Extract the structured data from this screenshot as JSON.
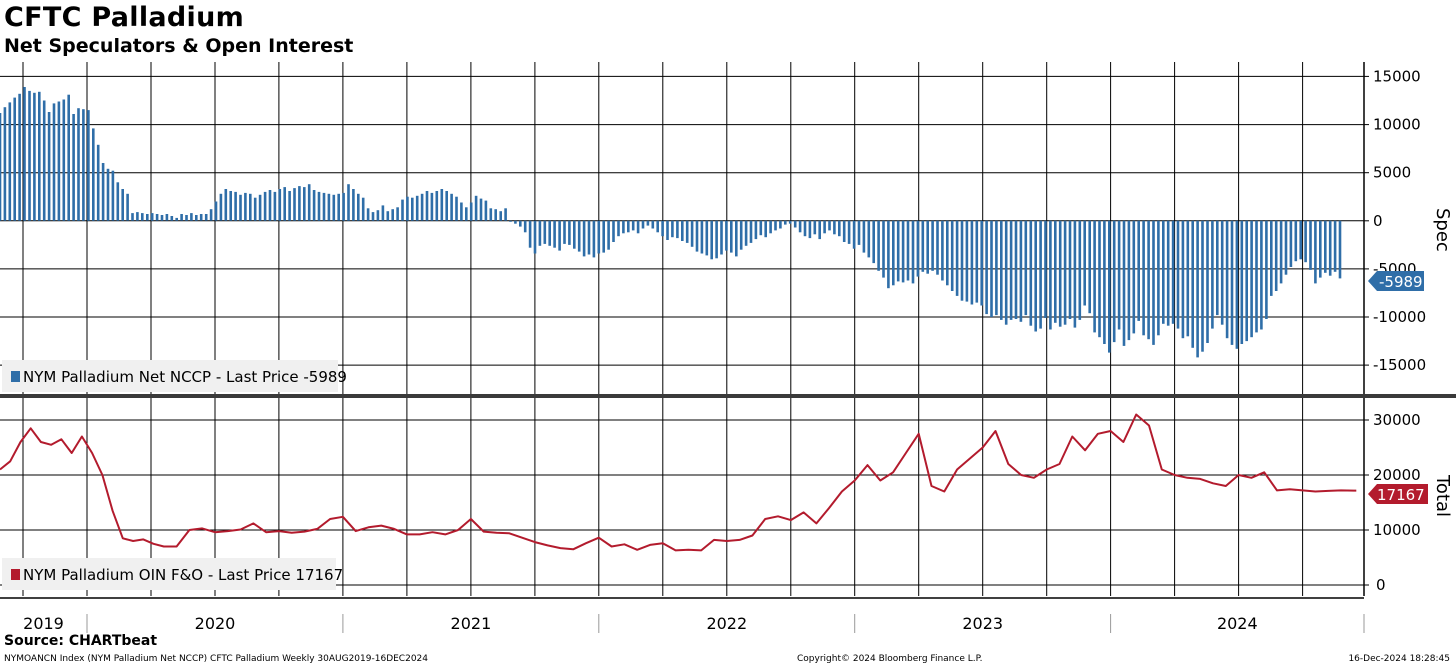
{
  "header": {
    "title": "CFTC Palladium",
    "subtitle": "Net Speculators & Open Interest"
  },
  "footer": {
    "source": "Source: CHARTbeat",
    "left": "NYMOANCN Index (NYM Palladium Net NCCP) CFTC Palladium  Weekly 30AUG2019-16DEC2024",
    "middle": "Copyright© 2024 Bloomberg Finance L.P.",
    "right": "16-Dec-2024 18:28:45"
  },
  "colors": {
    "bar": "#2f6ea8",
    "line": "#b31b2d",
    "grid": "#000000",
    "badge_top": "#2f6ea8",
    "badge_bottom": "#b31b2d"
  },
  "chart_data": [
    {
      "type": "bar",
      "panel": "top",
      "series_name": "NYM Palladium Net NCCP",
      "legend": "NYM Palladium Net NCCP - Last Price -5989",
      "axis_title": "Spec",
      "last_value": -5989,
      "last_label": "-5989",
      "ylim": [
        -18000,
        16500
      ],
      "yticks": [
        15000,
        10000,
        5000,
        0,
        -5000,
        -10000,
        -15000
      ],
      "ytick_labels": [
        "15000",
        "10000",
        "5000",
        "0",
        "-5000",
        "-10000",
        "-15000"
      ],
      "x_start": 2019.66,
      "x_step": 0.01918,
      "values": [
        11200,
        11800,
        12300,
        12800,
        13200,
        13900,
        13500,
        13300,
        13400,
        12500,
        11300,
        12200,
        12400,
        12600,
        13100,
        11100,
        11700,
        11600,
        11500,
        9600,
        7900,
        6000,
        5400,
        5200,
        4000,
        3300,
        2800,
        800,
        900,
        800,
        700,
        800,
        700,
        600,
        700,
        500,
        300,
        700,
        600,
        800,
        600,
        700,
        700,
        1200,
        2000,
        2800,
        3300,
        3100,
        3000,
        2700,
        2900,
        2800,
        2400,
        2700,
        3000,
        3200,
        3000,
        3300,
        3500,
        3100,
        3400,
        3600,
        3500,
        3800,
        3200,
        3000,
        2900,
        2800,
        2700,
        2800,
        2900,
        3800,
        3300,
        2800,
        2400,
        1300,
        900,
        1100,
        1600,
        1000,
        1200,
        1400,
        2200,
        2500,
        2400,
        2600,
        2800,
        3100,
        2900,
        3100,
        3300,
        3100,
        2800,
        2500,
        1900,
        1400,
        1900,
        2600,
        2300,
        2100,
        1300,
        1200,
        1000,
        1300,
        -100,
        -300,
        -600,
        -1200,
        -2800,
        -3400,
        -2600,
        -2400,
        -2600,
        -2800,
        -3100,
        -2400,
        -2500,
        -2900,
        -3200,
        -3700,
        -3500,
        -3800,
        -3400,
        -3300,
        -3000,
        -2200,
        -1600,
        -1300,
        -1200,
        -1000,
        -1300,
        -800,
        -500,
        -800,
        -1200,
        -1600,
        -2000,
        -1700,
        -1800,
        -2100,
        -2300,
        -2700,
        -3200,
        -3400,
        -3600,
        -4000,
        -3900,
        -3500,
        -3100,
        -3300,
        -3700,
        -3000,
        -2600,
        -2300,
        -1900,
        -1500,
        -1700,
        -1300,
        -1000,
        -800,
        -400,
        -300,
        -700,
        -1200,
        -1600,
        -1800,
        -1400,
        -1900,
        -1300,
        -1000,
        -1400,
        -1600,
        -2200,
        -2400,
        -2900,
        -2500,
        -3300,
        -3800,
        -4400,
        -5200,
        -5900,
        -7000,
        -6700,
        -6300,
        -6400,
        -6200,
        -6500,
        -5800,
        -5300,
        -5500,
        -5200,
        -5600,
        -6200,
        -6700,
        -7300,
        -7800,
        -8300,
        -8400,
        -8700,
        -8500,
        -8800,
        -9700,
        -10000,
        -9800,
        -10300,
        -10800,
        -10300,
        -10200,
        -10500,
        -9800,
        -10900,
        -11500,
        -11200,
        -10100,
        -11300,
        -10600,
        -11000,
        -10800,
        -10200,
        -11100,
        -10300,
        -8800,
        -9600,
        -11600,
        -12100,
        -12800,
        -13700,
        -12600,
        -11300,
        -13000,
        -12400,
        -11700,
        -10400,
        -11900,
        -12300,
        -12900,
        -11900,
        -10700,
        -10900,
        -10700,
        -11200,
        -12200,
        -12000,
        -13200,
        -14200,
        -13600,
        -12700,
        -11200,
        -9800,
        -10800,
        -12200,
        -12900,
        -13300,
        -12800,
        -12500,
        -12100,
        -11600,
        -11300,
        -10200,
        -7800,
        -7300,
        -6500,
        -5600,
        -4800,
        -4200,
        -4000,
        -4300,
        -5100,
        -6500,
        -5900,
        -5400,
        -5700,
        -5300,
        -5989
      ]
    },
    {
      "type": "line",
      "panel": "bottom",
      "series_name": "NYM Palladium OIN F&O",
      "legend": "NYM Palladium OIN F&O - Last Price 17167",
      "axis_title": "Total",
      "last_value": 17167,
      "last_label": "17167",
      "ylim": [
        -2000,
        34000
      ],
      "yticks": [
        30000,
        20000,
        10000,
        0
      ],
      "ytick_labels": [
        "30000",
        "20000",
        "10000",
        "0"
      ],
      "x": [
        2019.66,
        2019.7,
        2019.74,
        2019.78,
        2019.82,
        2019.86,
        2019.9,
        2019.94,
        2019.98,
        2020.02,
        2020.06,
        2020.1,
        2020.14,
        2020.18,
        2020.22,
        2020.26,
        2020.3,
        2020.35,
        2020.4,
        2020.45,
        2020.5,
        2020.55,
        2020.6,
        2020.65,
        2020.7,
        2020.75,
        2020.8,
        2020.85,
        2020.9,
        2020.95,
        2021.0,
        2021.05,
        2021.1,
        2021.15,
        2021.2,
        2021.25,
        2021.3,
        2021.35,
        2021.4,
        2021.45,
        2021.5,
        2021.55,
        2021.6,
        2021.65,
        2021.7,
        2021.75,
        2021.8,
        2021.85,
        2021.9,
        2021.95,
        2022.0,
        2022.05,
        2022.1,
        2022.15,
        2022.2,
        2022.25,
        2022.3,
        2022.35,
        2022.4,
        2022.45,
        2022.5,
        2022.55,
        2022.6,
        2022.65,
        2022.7,
        2022.75,
        2022.8,
        2022.85,
        2022.9,
        2022.95,
        2023.0,
        2023.05,
        2023.1,
        2023.15,
        2023.2,
        2023.25,
        2023.3,
        2023.35,
        2023.4,
        2023.45,
        2023.5,
        2023.55,
        2023.6,
        2023.65,
        2023.7,
        2023.75,
        2023.8,
        2023.85,
        2023.9,
        2023.95,
        2024.0,
        2024.05,
        2024.1,
        2024.15,
        2024.2,
        2024.25,
        2024.3,
        2024.35,
        2024.4,
        2024.45,
        2024.5,
        2024.55,
        2024.6,
        2024.65,
        2024.7,
        2024.75,
        2024.8,
        2024.85,
        2024.9,
        2024.95,
        2024.96
      ],
      "values": [
        21000,
        22500,
        26000,
        28500,
        26000,
        25500,
        26500,
        24000,
        27000,
        24000,
        20000,
        13500,
        8500,
        8000,
        8300,
        7500,
        7000,
        7000,
        10000,
        10300,
        9600,
        9800,
        10100,
        11200,
        9600,
        9800,
        9500,
        9700,
        10200,
        12000,
        12400,
        9800,
        10500,
        10800,
        10200,
        9200,
        9200,
        9600,
        9200,
        10000,
        12000,
        9700,
        9500,
        9400,
        8600,
        7800,
        7200,
        6700,
        6500,
        7600,
        8600,
        7000,
        7400,
        6400,
        7300,
        7600,
        6300,
        6400,
        6300,
        8200,
        8000,
        8200,
        9000,
        12000,
        12500,
        11800,
        13200,
        11200,
        14000,
        17000,
        19000,
        21800,
        19000,
        20500,
        24000,
        27500,
        18000,
        17000,
        21000,
        23000,
        25000,
        28000,
        22000,
        20000,
        19500,
        21000,
        22000,
        27000,
        24500,
        27500,
        28000,
        26000,
        31000,
        29000,
        21000,
        20000,
        19500,
        19300,
        18500,
        18000,
        20000,
        19500,
        20500,
        17200,
        17400,
        17200,
        17000,
        17100,
        17200,
        17167,
        17167
      ]
    }
  ],
  "x_axis": {
    "year_labels": [
      "2019",
      "2020",
      "2021",
      "2022",
      "2023",
      "2024"
    ]
  }
}
